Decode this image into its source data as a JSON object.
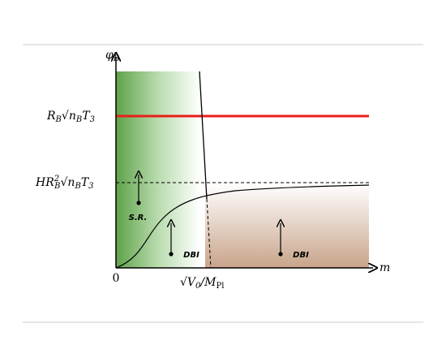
{
  "axes": {
    "y_label": {
      "symbol": "φ",
      "sub": "B"
    },
    "x_label": "m",
    "origin": "0",
    "x_mark": {
      "root": "√",
      "v": "V",
      "v_sub": "0",
      "over": "/M",
      "over_sub": "Pl"
    }
  },
  "levels": [
    {
      "a": "R",
      "a_sub": "B",
      "root": "√",
      "n": "n",
      "n_sub": "B",
      "t": "T",
      "t_sub": "3"
    },
    {
      "h": "H",
      "a": "R",
      "a_sub": "B",
      "a_sup": "2",
      "root": "√",
      "n": "n",
      "n_sub": "B",
      "t": "T",
      "t_sub": "3"
    }
  ],
  "regions": [
    "S.R.",
    "DBI",
    "DBI"
  ]
}
